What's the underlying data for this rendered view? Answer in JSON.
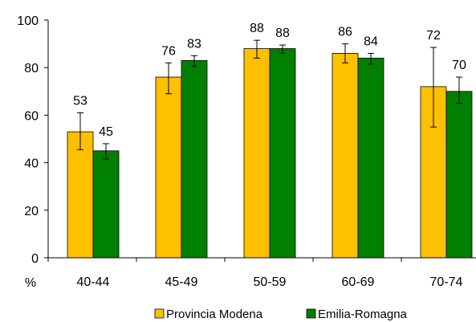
{
  "chart_data": {
    "type": "bar",
    "title": "",
    "xlabel": "",
    "ylabel": "",
    "y_unit": "%",
    "ylim": [
      0,
      100
    ],
    "yticks": [
      0,
      20,
      40,
      60,
      80,
      100
    ],
    "grid": false,
    "legend_position": "bottom",
    "categories": [
      "40-44",
      "45-49",
      "50-59",
      "60-69",
      "70-74"
    ],
    "series": [
      {
        "name": "Provincia Modena",
        "color": "#FFC000",
        "values": [
          53,
          76,
          88,
          86,
          72
        ],
        "error_low": [
          45.5,
          69,
          84,
          82,
          55
        ],
        "error_high": [
          61,
          82,
          91.5,
          90,
          88.5
        ]
      },
      {
        "name": "Emilia-Romagna",
        "color": "#008000",
        "values": [
          45,
          83,
          88,
          84,
          70
        ],
        "error_low": [
          41.5,
          80.5,
          86,
          81.5,
          65
        ],
        "error_high": [
          48,
          85,
          89.5,
          86,
          76
        ]
      }
    ]
  }
}
